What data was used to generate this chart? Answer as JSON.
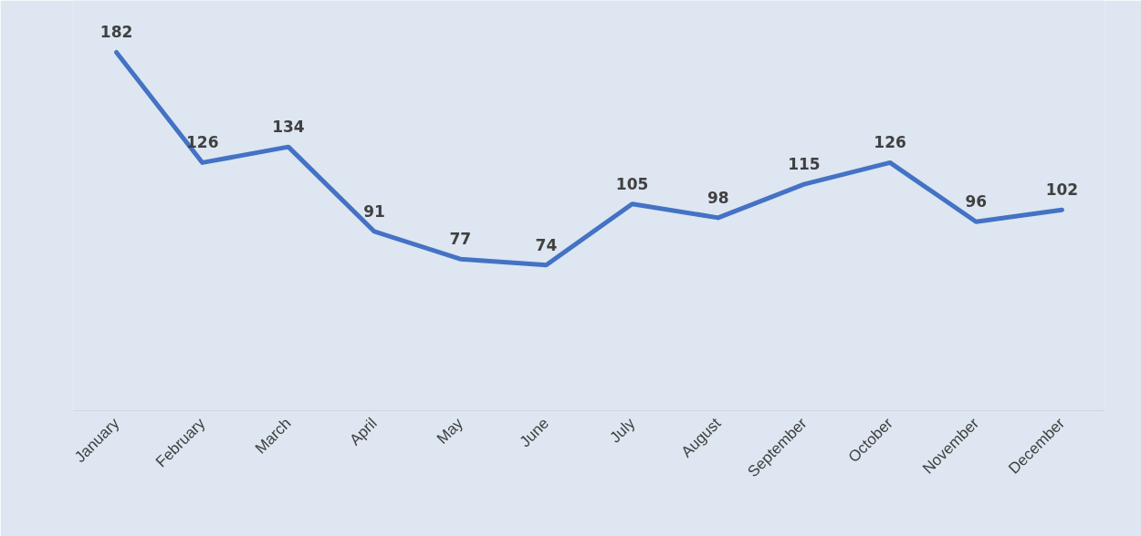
{
  "chart_data": {
    "type": "line",
    "categories": [
      "January",
      "February",
      "March",
      "April",
      "May",
      "June",
      "July",
      "August",
      "September",
      "October",
      "November",
      "December"
    ],
    "series": [
      {
        "color": "#4472c4",
        "values": [
          182,
          126,
          134,
          91,
          77,
          74,
          105,
          98,
          115,
          126,
          96,
          102
        ]
      }
    ],
    "data_labels": true
  }
}
